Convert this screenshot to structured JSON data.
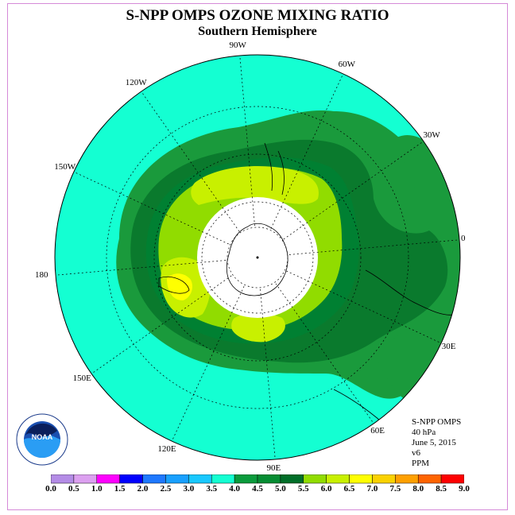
{
  "title": "S-NPP OMPS OZONE MIXING RATIO",
  "subtitle": "Southern Hemisphere",
  "longitude_labels": [
    "90W",
    "60W",
    "30W",
    "0",
    "30E",
    "60E",
    "90E",
    "120E",
    "150E",
    "180",
    "150W",
    "120W"
  ],
  "info": {
    "instrument": "S-NPP OMPS",
    "level": "40 hPa",
    "date": "June 5, 2015",
    "version": "v6",
    "units": "PPM"
  },
  "logo": {
    "text": "NOAA",
    "ring_text": "NATIONAL OCEANIC AND ATMOSPHERIC ADMINISTRATION · U.S. DEPARTMENT OF COMMERCE"
  },
  "colorbar": {
    "ticks": [
      "0.0",
      "0.5",
      "1.0",
      "1.5",
      "2.0",
      "2.5",
      "3.0",
      "3.5",
      "4.0",
      "4.5",
      "5.0",
      "5.5",
      "6.0",
      "6.5",
      "7.0",
      "7.5",
      "8.0",
      "8.5",
      "9.0"
    ],
    "colors": [
      "#b48ce6",
      "#dca0f0",
      "#ff00ff",
      "#0000ff",
      "#1e78ff",
      "#19a0ff",
      "#19c8ff",
      "#14ffd2",
      "#0a9b3c",
      "#058c32",
      "#006e28",
      "#91dc00",
      "#c8f000",
      "#ffff00",
      "#fad200",
      "#ffa000",
      "#ff6400",
      "#ff0000",
      "#8c5a3c"
    ]
  },
  "map_colors": {
    "ocean_low": "#14ffd2",
    "band_4_45": "#1a9a3c",
    "band_45_5": "#0a7a2d",
    "band_5_55": "#008032",
    "band_55_6": "#91dc00",
    "band_6_65": "#c8f000",
    "band_65_7": "#ffff00",
    "pole_mask": "#ffffff"
  }
}
